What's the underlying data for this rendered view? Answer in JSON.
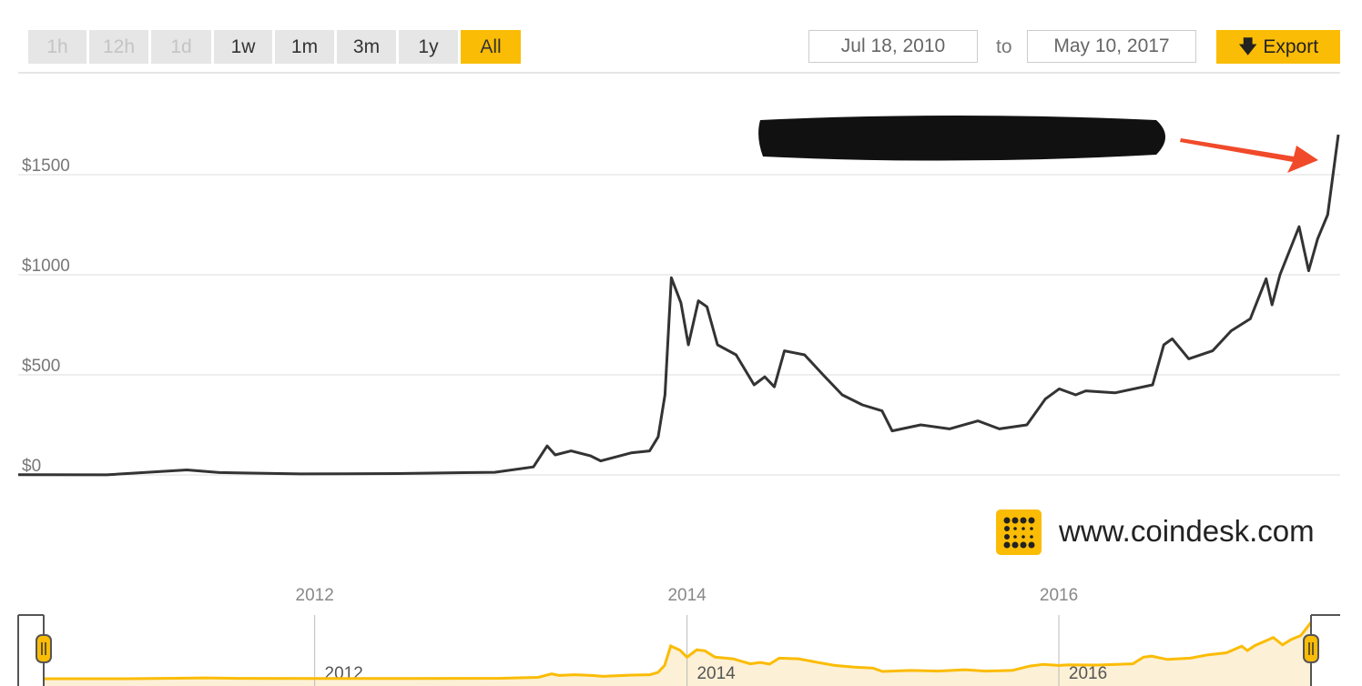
{
  "ranges": [
    {
      "label": "1h",
      "state": "disabled"
    },
    {
      "label": "12h",
      "state": "disabled"
    },
    {
      "label": "1d",
      "state": "disabled"
    },
    {
      "label": "1w",
      "state": "normal"
    },
    {
      "label": "1m",
      "state": "normal"
    },
    {
      "label": "3m",
      "state": "normal"
    },
    {
      "label": "1y",
      "state": "normal"
    },
    {
      "label": "All",
      "state": "active"
    }
  ],
  "date_from": "Jul 18, 2010",
  "date_to_label": "to",
  "date_to": "May 10, 2017",
  "export_label": "Export",
  "export_icon": "arrow-down-icon",
  "brand": "www.coindesk.com",
  "colors": {
    "accent": "#fbbc05",
    "line": "#333333",
    "arrow": "#f04a2a"
  },
  "chart_data": {
    "type": "line",
    "title": "",
    "xlabel": "",
    "ylabel": "",
    "xlim": [
      "2010-07-18",
      "2017-05-10"
    ],
    "ylim": [
      0,
      1800
    ],
    "yticks": [
      {
        "v": 0,
        "label": "$0"
      },
      {
        "v": 500,
        "label": "$500"
      },
      {
        "v": 1000,
        "label": "$1000"
      },
      {
        "v": 1500,
        "label": "$1500"
      }
    ],
    "xticks": [
      {
        "v": "2012-01-01",
        "label": "2012"
      },
      {
        "v": "2014-01-01",
        "label": "2014"
      },
      {
        "v": "2016-01-01",
        "label": "2016"
      }
    ],
    "grid": true,
    "series": [
      {
        "points": [
          [
            "2010-07-18",
            1
          ],
          [
            "2011-01-01",
            0.3
          ],
          [
            "2011-06-01",
            25
          ],
          [
            "2011-08-01",
            12
          ],
          [
            "2012-01-01",
            5
          ],
          [
            "2012-07-01",
            7
          ],
          [
            "2013-01-01",
            13
          ],
          [
            "2013-03-15",
            40
          ],
          [
            "2013-04-10",
            145
          ],
          [
            "2013-04-25",
            100
          ],
          [
            "2013-05-25",
            120
          ],
          [
            "2013-07-01",
            95
          ],
          [
            "2013-07-20",
            70
          ],
          [
            "2013-09-15",
            110
          ],
          [
            "2013-10-20",
            120
          ],
          [
            "2013-11-05",
            190
          ],
          [
            "2013-11-18",
            400
          ],
          [
            "2013-11-30",
            985
          ],
          [
            "2013-12-18",
            860
          ],
          [
            "2014-01-01",
            650
          ],
          [
            "2014-01-20",
            870
          ],
          [
            "2014-02-05",
            840
          ],
          [
            "2014-02-25",
            650
          ],
          [
            "2014-04-01",
            600
          ],
          [
            "2014-05-05",
            450
          ],
          [
            "2014-05-25",
            490
          ],
          [
            "2014-06-12",
            440
          ],
          [
            "2014-07-01",
            620
          ],
          [
            "2014-07-20",
            610
          ],
          [
            "2014-08-08",
            600
          ],
          [
            "2014-09-12",
            500
          ],
          [
            "2014-10-18",
            400
          ],
          [
            "2014-11-25",
            350
          ],
          [
            "2015-01-01",
            320
          ],
          [
            "2015-01-20",
            220
          ],
          [
            "2015-03-15",
            250
          ],
          [
            "2015-05-08",
            230
          ],
          [
            "2015-07-01",
            270
          ],
          [
            "2015-08-10",
            230
          ],
          [
            "2015-10-01",
            250
          ],
          [
            "2015-11-05",
            380
          ],
          [
            "2015-12-01",
            430
          ],
          [
            "2016-01-01",
            400
          ],
          [
            "2016-01-20",
            420
          ],
          [
            "2016-03-15",
            410
          ],
          [
            "2016-05-25",
            450
          ],
          [
            "2016-06-15",
            650
          ],
          [
            "2016-07-01",
            680
          ],
          [
            "2016-08-01",
            580
          ],
          [
            "2016-09-15",
            620
          ],
          [
            "2016-10-20",
            720
          ],
          [
            "2016-11-25",
            780
          ],
          [
            "2016-12-25",
            980
          ],
          [
            "2017-01-05",
            850
          ],
          [
            "2017-01-20",
            1000
          ],
          [
            "2017-02-25",
            1240
          ],
          [
            "2017-03-15",
            1020
          ],
          [
            "2017-04-01",
            1180
          ],
          [
            "2017-04-20",
            1300
          ],
          [
            "2017-05-10",
            1700
          ]
        ]
      }
    ]
  }
}
